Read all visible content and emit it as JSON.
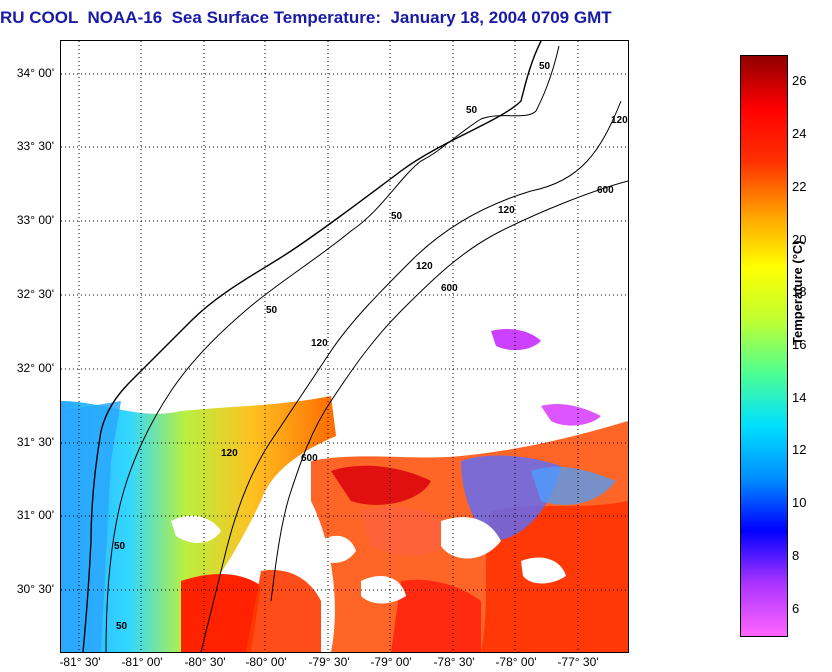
{
  "title": "RU COOL  NOAA-16  Sea Surface Temperature:  January 18, 2004 0709 GMT",
  "map": {
    "latitude_labels": [
      "34° 00'",
      "33° 30'",
      "33° 00'",
      "32° 30'",
      "32° 00'",
      "31° 30'",
      "31° 00'",
      "30° 30'"
    ],
    "longitude_labels": [
      "-81° 30'",
      "-81° 00'",
      "-80° 30'",
      "-80° 00'",
      "-79° 30'",
      "-79° 00'",
      "-78° 30'",
      "-78° 00'",
      "-77° 30'"
    ],
    "contour_labels": [
      "50",
      "50",
      "50",
      "50",
      "50",
      "50",
      "120",
      "120",
      "120",
      "120",
      "120",
      "600",
      "600",
      "600"
    ]
  },
  "colorbar": {
    "label": "Temperature (°C)",
    "ticks": [
      "26",
      "24",
      "22",
      "20",
      "18",
      "16",
      "14",
      "12",
      "10",
      "8",
      "6"
    ],
    "range": [
      5,
      27
    ],
    "colors": [
      "#ff66ff",
      "#aa33ff",
      "#0000ff",
      "#0090ff",
      "#00e0ff",
      "#50ff90",
      "#c0ff30",
      "#ffff00",
      "#ffa000",
      "#ff3000",
      "#ff0000",
      "#900000"
    ]
  }
}
